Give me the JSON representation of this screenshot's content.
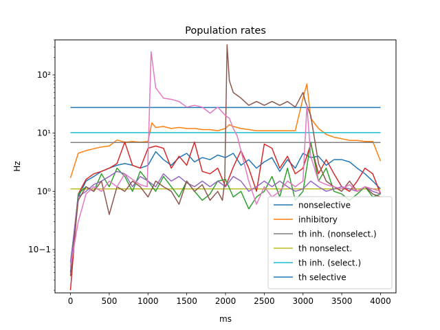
{
  "chart_data": {
    "type": "line",
    "title": "Population rates",
    "xlabel": "ms",
    "ylabel": "Hz",
    "xlim": [
      -200,
      4200
    ],
    "ylim": [
      0.018,
      400
    ],
    "yscale": "log",
    "grid": false,
    "legend_position": "lower right",
    "x_ticks": [
      0,
      500,
      1000,
      1500,
      2000,
      2500,
      3000,
      3500,
      4000
    ],
    "x_tick_labels": [
      "0",
      "500",
      "1000",
      "1500",
      "2000",
      "2500",
      "3000",
      "3500",
      "4000"
    ],
    "y_ticks": [
      0.1,
      1,
      10,
      100
    ],
    "y_tick_labels": [
      "10−1",
      "10⁰",
      "10¹",
      "10²"
    ],
    "series": [
      {
        "name": "nonselective",
        "color": "#1f77b4",
        "legend": true,
        "x": [
          0,
          100,
          200,
          300,
          400,
          500,
          600,
          700,
          800,
          900,
          1000,
          1100,
          1200,
          1300,
          1400,
          1500,
          1600,
          1700,
          1800,
          1900,
          2000,
          2100,
          2200,
          2300,
          2400,
          2500,
          2600,
          2700,
          2800,
          2900,
          3000,
          3100,
          3200,
          3300,
          3400,
          3500,
          3600,
          3700,
          3800,
          3900,
          4000
        ],
        "y": [
          0.04,
          0.8,
          1.5,
          1.8,
          2.2,
          2.5,
          2.8,
          3.0,
          2.8,
          2.5,
          2.8,
          4.8,
          3.5,
          2.8,
          3.8,
          4.5,
          3.2,
          3.8,
          3.5,
          4.2,
          3.8,
          4.5,
          2.8,
          3.5,
          2.5,
          3.2,
          3.8,
          2.2,
          3.5,
          2.5,
          4.5,
          3.8,
          4.0,
          2.8,
          3.5,
          3.5,
          3.2,
          2.5,
          2.0,
          1.5,
          1.1
        ]
      },
      {
        "name": "inhibitory",
        "color": "#ff7f0e",
        "legend": true,
        "x": [
          0,
          100,
          200,
          300,
          400,
          500,
          600,
          700,
          800,
          900,
          1000,
          1050,
          1100,
          1200,
          1300,
          1400,
          1500,
          1600,
          1700,
          1800,
          1900,
          2000,
          2050,
          2100,
          2200,
          2300,
          2400,
          2500,
          2600,
          2700,
          2800,
          2900,
          3000,
          3050,
          3100,
          3200,
          3300,
          3400,
          3500,
          3600,
          3700,
          3800,
          3900,
          4000
        ],
        "y": [
          1.7,
          4.5,
          5.0,
          5.4,
          5.8,
          6.0,
          7.6,
          7.0,
          7.2,
          7.0,
          7.2,
          15,
          12.5,
          13,
          12,
          12.5,
          12,
          12,
          11.5,
          11.5,
          11,
          12,
          14,
          13,
          12,
          11.5,
          11,
          11,
          11,
          11,
          11,
          11,
          40,
          70,
          18,
          12,
          9.5,
          8.5,
          8.0,
          7.5,
          7.5,
          7.2,
          7.2,
          3.3
        ]
      },
      {
        "name": "th inh. (nonselect.)",
        "color": "#7f7f7f",
        "legend": true,
        "x": [
          0,
          4000
        ],
        "y": [
          6.9,
          6.9
        ]
      },
      {
        "name": "th nonselect.",
        "color": "#bcbd22",
        "legend": true,
        "x": [
          0,
          4000
        ],
        "y": [
          1.1,
          1.1
        ]
      },
      {
        "name": "th inh. (select.)",
        "color": "#17becf",
        "legend": true,
        "x": [
          0,
          4000
        ],
        "y": [
          10.2,
          10.2
        ]
      },
      {
        "name": "th selective",
        "color": "#1f77b4",
        "legend": true,
        "x": [
          0,
          4000
        ],
        "y": [
          27.5,
          27.5
        ]
      },
      {
        "color": "#d62728",
        "legend": false,
        "x": [
          0,
          100,
          200,
          300,
          400,
          500,
          600,
          700,
          800,
          900,
          1000,
          1100,
          1200,
          1300,
          1400,
          1500,
          1600,
          1700,
          1800,
          1900,
          2000,
          2100,
          2200,
          2300,
          2400,
          2500,
          2600,
          2700,
          2800,
          2900,
          3000,
          3100,
          3200,
          3300,
          3400,
          3500,
          3600,
          3700,
          3800,
          3900,
          4000
        ],
        "y": [
          0.02,
          0.9,
          1.6,
          2.0,
          2.2,
          2.5,
          3.0,
          7.0,
          2.8,
          2.5,
          5.5,
          6.0,
          5.5,
          2.5,
          4.0,
          2.8,
          7.0,
          2.2,
          2.0,
          2.5,
          1.2,
          2.6,
          5.0,
          2.5,
          1.0,
          6.5,
          5.5,
          2.5,
          4.0,
          2.0,
          2.5,
          6.5,
          2.0,
          3.5,
          2.0,
          1.2,
          1.0,
          1.5,
          2.5,
          2.0,
          0.9
        ]
      },
      {
        "color": "#2ca02c",
        "legend": false,
        "x": [
          0,
          100,
          200,
          300,
          400,
          500,
          600,
          700,
          800,
          900,
          1000,
          1100,
          1200,
          1300,
          1400,
          1500,
          1600,
          1700,
          1800,
          1900,
          2000,
          2100,
          2200,
          2300,
          2400,
          2500,
          2600,
          2700,
          2800,
          2900,
          3000,
          3100,
          3200,
          3300,
          3400,
          3500,
          3600,
          3700,
          3800,
          3900,
          4000
        ],
        "y": [
          0.05,
          0.9,
          1.2,
          1.0,
          2.0,
          1.2,
          2.5,
          1.8,
          1.0,
          2.2,
          1.5,
          1.0,
          1.8,
          1.2,
          0.8,
          1.5,
          1.0,
          0.7,
          0.9,
          1.5,
          1.6,
          0.8,
          1.0,
          0.5,
          0.8,
          1.0,
          1.8,
          0.8,
          2.5,
          0.7,
          1.0,
          7.0,
          1.5,
          2.5,
          1.0,
          0.9,
          0.7,
          0.9,
          1.2,
          0.8,
          0.9
        ]
      },
      {
        "color": "#9467bd",
        "legend": false,
        "x": [
          0,
          100,
          200,
          300,
          400,
          500,
          600,
          700,
          800,
          900,
          1000,
          1100,
          1200,
          1300,
          1400,
          1500,
          1600,
          1700,
          1800,
          1900,
          2000,
          2100,
          2200,
          2300,
          2400,
          2500,
          2600,
          2700,
          2800,
          2900,
          3000,
          3100,
          3200,
          3300,
          3400,
          3500,
          3600,
          3700,
          3800,
          3900,
          4000
        ],
        "y": [
          0.06,
          0.8,
          1.0,
          1.3,
          1.5,
          1.8,
          2.2,
          2.0,
          1.2,
          1.8,
          1.5,
          1.2,
          2.0,
          1.5,
          1.8,
          1.4,
          1.2,
          1.5,
          1.2,
          1.5,
          1.2,
          1.8,
          1.5,
          1.0,
          1.2,
          1.5,
          1.2,
          1.5,
          1.2,
          1.0,
          1.1,
          1.5,
          1.2,
          1.0,
          1.1,
          1.2,
          1.1,
          1.0,
          1.2,
          1.0,
          0.9
        ]
      },
      {
        "color": "#8c564b",
        "legend": false,
        "x": [
          0,
          100,
          200,
          300,
          400,
          500,
          600,
          700,
          800,
          900,
          1000,
          1100,
          1200,
          1300,
          1400,
          1500,
          1600,
          1700,
          1800,
          1900,
          1960,
          1990,
          2020,
          2050,
          2100,
          2200,
          2300,
          2400,
          2500,
          2600,
          2700,
          2800,
          2900,
          3000,
          3030,
          3100,
          3200,
          3300,
          3400,
          3500,
          3600,
          3700,
          3800,
          3900,
          4000
        ],
        "y": [
          0.035,
          0.7,
          1.2,
          1.0,
          1.5,
          0.4,
          1.2,
          1.0,
          1.5,
          1.2,
          0.8,
          1.5,
          1.2,
          1.0,
          0.6,
          1.5,
          1.0,
          1.3,
          0.7,
          1.0,
          0.7,
          1.5,
          330,
          80,
          50,
          40,
          30,
          35,
          30,
          35,
          30,
          35,
          28,
          50,
          35,
          20,
          3.0,
          1.5,
          1.2,
          1.0,
          1.5,
          1.0,
          1.2,
          0.9,
          0.8
        ]
      },
      {
        "color": "#e377c2",
        "legend": false,
        "x": [
          0,
          100,
          200,
          300,
          400,
          500,
          600,
          700,
          800,
          900,
          990,
          1040,
          1100,
          1200,
          1300,
          1400,
          1500,
          1600,
          1700,
          1800,
          1900,
          2000,
          2050,
          2100,
          2150,
          2200,
          2300,
          2400,
          2500,
          2600,
          2700,
          2800,
          2900,
          3000,
          3050,
          3100,
          3200,
          3300,
          3400,
          3500,
          3600,
          3700,
          3800,
          3900,
          4000
        ],
        "y": [
          0.05,
          0.3,
          0.9,
          1.2,
          1.0,
          1.5,
          1.2,
          2.0,
          1.6,
          1.3,
          1.2,
          250,
          60,
          40,
          38,
          35,
          28,
          30,
          28,
          22,
          28,
          20,
          18,
          12,
          9.0,
          5.0,
          1.5,
          0.6,
          1.2,
          0.8,
          1.0,
          1.5,
          1.2,
          1.5,
          30,
          4.0,
          1.5,
          1.3,
          1.2,
          1.1,
          1.3,
          1.0,
          1.2,
          1.1,
          1.0
        ]
      }
    ]
  }
}
